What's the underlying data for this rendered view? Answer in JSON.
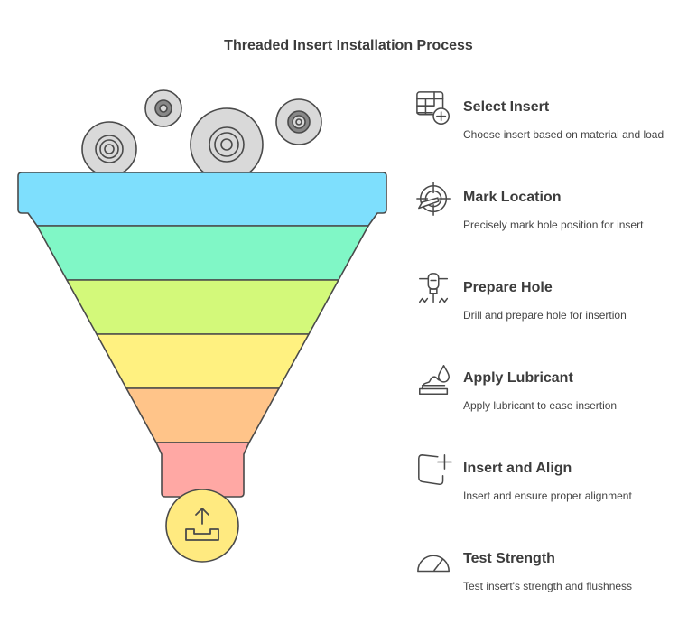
{
  "title": "Threaded Insert Installation Process",
  "colors": {
    "band_1": "#7EDFFD",
    "band_2": "#80F7C6",
    "band_3": "#D3F97A",
    "band_4": "#FFF180",
    "band_5": "#FFC489",
    "band_6": "#FFA8A4",
    "output_circle": "#FFEA80",
    "inserts": "#D9D9D9",
    "outline": "#4a4a4a"
  },
  "steps": [
    {
      "title": "Select Insert",
      "description": "Choose insert based on material and load",
      "icon": "table-plus-icon"
    },
    {
      "title": "Mark Location",
      "description": "Precisely mark hole position for insert",
      "icon": "target-crosshair-icon"
    },
    {
      "title": "Prepare Hole",
      "description": "Drill and prepare hole for insertion",
      "icon": "drill-icon"
    },
    {
      "title": "Apply Lubricant",
      "description": "Apply lubricant to ease insertion",
      "icon": "lubricant-drop-icon"
    },
    {
      "title": "Insert and Align",
      "description": "Insert and ensure proper alignment",
      "icon": "square-plus-icon"
    },
    {
      "title": "Test Strength",
      "description": "Test insert's strength and flushness",
      "icon": "gauge-icon"
    }
  ]
}
